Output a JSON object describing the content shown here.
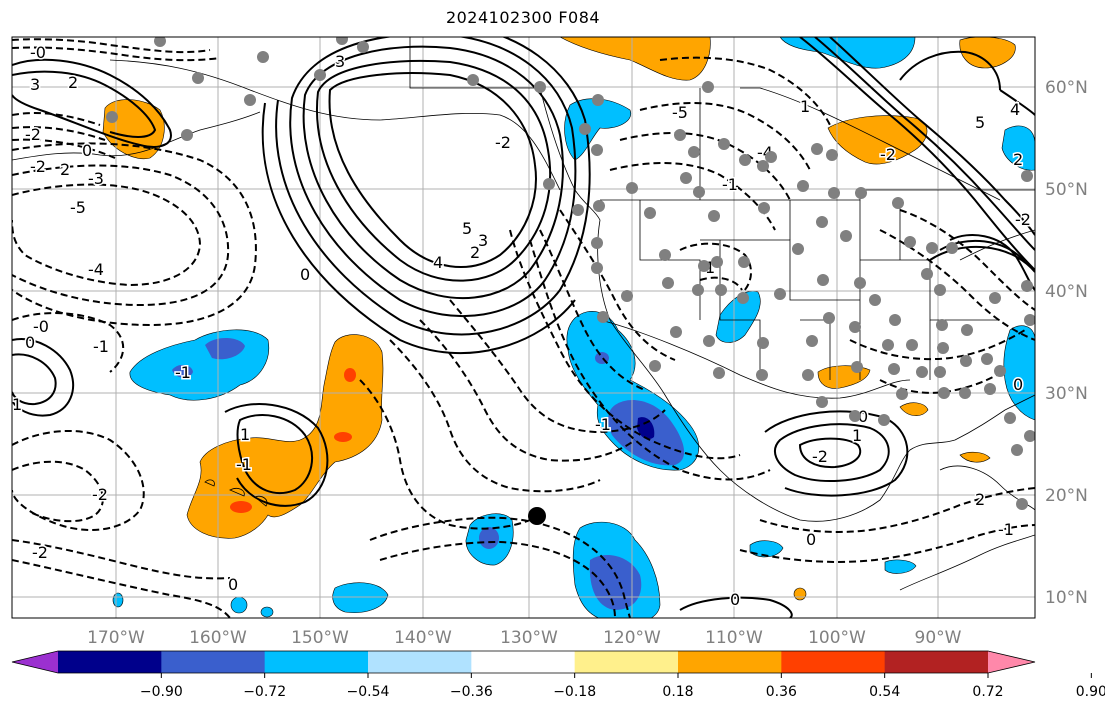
{
  "title": "2024102300 F084",
  "longitude_labels": [
    "170°W",
    "160°W",
    "150°W",
    "140°W",
    "130°W",
    "120°W",
    "110°W",
    "100°W",
    "90°W"
  ],
  "latitude_labels": [
    "60°N",
    "50°N",
    "40°N",
    "30°N",
    "20°N",
    "10°N"
  ],
  "colorbar": {
    "tick_labels": [
      "−0.90",
      "−0.72",
      "−0.54",
      "−0.36",
      "−0.18",
      "0.18",
      "0.36",
      "0.54",
      "0.72",
      "0.90"
    ],
    "colors": [
      "#9b30d0",
      "#00008b",
      "#3a5fcd",
      "#00bfff",
      "#b0e2ff",
      "#ffffff",
      "#fff08c",
      "#ffa500",
      "#ff4000",
      "#b22222",
      "#ff88aa"
    ]
  },
  "contour_labels": [
    "2",
    "3",
    "-2",
    "2",
    "0",
    "-2",
    "-3",
    "-5",
    "-4",
    "-0",
    "0",
    "-1",
    "3",
    "4",
    "5",
    "2",
    "-2",
    "3",
    "0",
    "1",
    "-1",
    "-2",
    "-2",
    "0",
    "-5",
    "-4",
    "-1",
    "1",
    "-1",
    "5",
    "4",
    "1",
    "-2",
    "-2",
    "2",
    "0",
    "1",
    "0",
    "-2",
    "-1",
    "0",
    "0",
    "-1",
    "-0",
    "1",
    "2"
  ],
  "colors": {
    "land_fill": "#ffffff",
    "grid": "#b0b0b0",
    "border": "#000000",
    "station_dot": "#808080",
    "marker": "#000000"
  }
}
